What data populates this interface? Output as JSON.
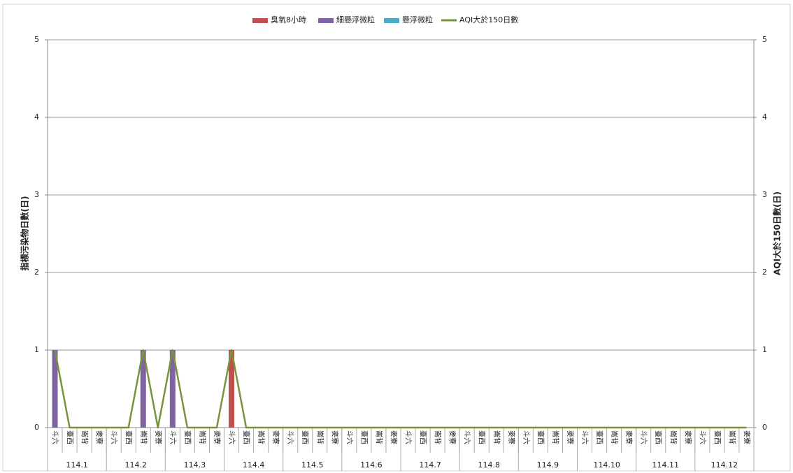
{
  "chart_data": {
    "type": "bar",
    "y_label": "指標污染物日數(日)",
    "y2_label": "AQI大於150日數(日)",
    "categories": [
      "斗六",
      "臺西",
      "崙背",
      "麥寮",
      "斗六",
      "臺西",
      "崙背",
      "麥寮",
      "斗六",
      "臺西",
      "崙背",
      "麥寮",
      "斗六",
      "臺西",
      "崙背",
      "麥寮",
      "斗六",
      "臺西",
      "崙背",
      "麥寮",
      "斗六",
      "臺西",
      "崙背",
      "麥寮",
      "斗六",
      "臺西",
      "崙背",
      "麥寮",
      "斗六",
      "臺西",
      "崙背",
      "麥寮",
      "斗六",
      "臺西",
      "崙背",
      "麥寮",
      "斗六",
      "臺西",
      "崙背",
      "麥寮",
      "斗六",
      "臺西",
      "崙背",
      "麥寮",
      "斗六",
      "臺西",
      "崙背",
      "麥寮"
    ],
    "groups": [
      "114.1",
      "114.2",
      "114.3",
      "114.4",
      "114.5",
      "114.6",
      "114.7",
      "114.8",
      "114.9",
      "114.10",
      "114.11",
      "114.12"
    ],
    "series": [
      {
        "name": "臭氧8小時",
        "color": "#c0504d",
        "values": [
          0,
          0,
          0,
          0,
          0,
          0,
          0,
          0,
          0,
          0,
          0,
          0,
          1,
          0,
          0,
          0,
          0,
          0,
          0,
          0,
          0,
          0,
          0,
          0,
          0,
          0,
          0,
          0,
          0,
          0,
          0,
          0,
          0,
          0,
          0,
          0,
          0,
          0,
          0,
          0,
          0,
          0,
          0,
          0,
          0,
          0,
          0,
          0
        ]
      },
      {
        "name": "細懸浮微粒",
        "color": "#8064a2",
        "values": [
          1,
          0,
          0,
          0,
          0,
          0,
          1,
          0,
          1,
          0,
          0,
          0,
          0,
          0,
          0,
          0,
          0,
          0,
          0,
          0,
          0,
          0,
          0,
          0,
          0,
          0,
          0,
          0,
          0,
          0,
          0,
          0,
          0,
          0,
          0,
          0,
          0,
          0,
          0,
          0,
          0,
          0,
          0,
          0,
          0,
          0,
          0,
          0
        ]
      },
      {
        "name": "懸浮微粒",
        "color": "#4bacc6",
        "values": [
          0,
          0,
          0,
          0,
          0,
          0,
          0,
          0,
          0,
          0,
          0,
          0,
          0,
          0,
          0,
          0,
          0,
          0,
          0,
          0,
          0,
          0,
          0,
          0,
          0,
          0,
          0,
          0,
          0,
          0,
          0,
          0,
          0,
          0,
          0,
          0,
          0,
          0,
          0,
          0,
          0,
          0,
          0,
          0,
          0,
          0,
          0,
          0
        ]
      },
      {
        "name": "AQI大於150日數",
        "color": "#77933c",
        "type": "line",
        "axis": "y2",
        "values": [
          1,
          0,
          0,
          0,
          0,
          0,
          1,
          0,
          1,
          0,
          0,
          0,
          1,
          0,
          0,
          0,
          0,
          0,
          0,
          0,
          0,
          0,
          0,
          0,
          0,
          0,
          0,
          0,
          0,
          0,
          0,
          0,
          0,
          0,
          0,
          0,
          0,
          0,
          0,
          0,
          0,
          0,
          0,
          0,
          0,
          0,
          0,
          0
        ]
      }
    ],
    "ylim": [
      0,
      5
    ],
    "yticks": [
      0,
      1,
      2,
      3,
      4,
      5
    ],
    "y2lim": [
      0,
      5
    ],
    "y2ticks": [
      0,
      1,
      2,
      3,
      4,
      5
    ],
    "stacked": true,
    "grid": true,
    "legend": "top"
  }
}
